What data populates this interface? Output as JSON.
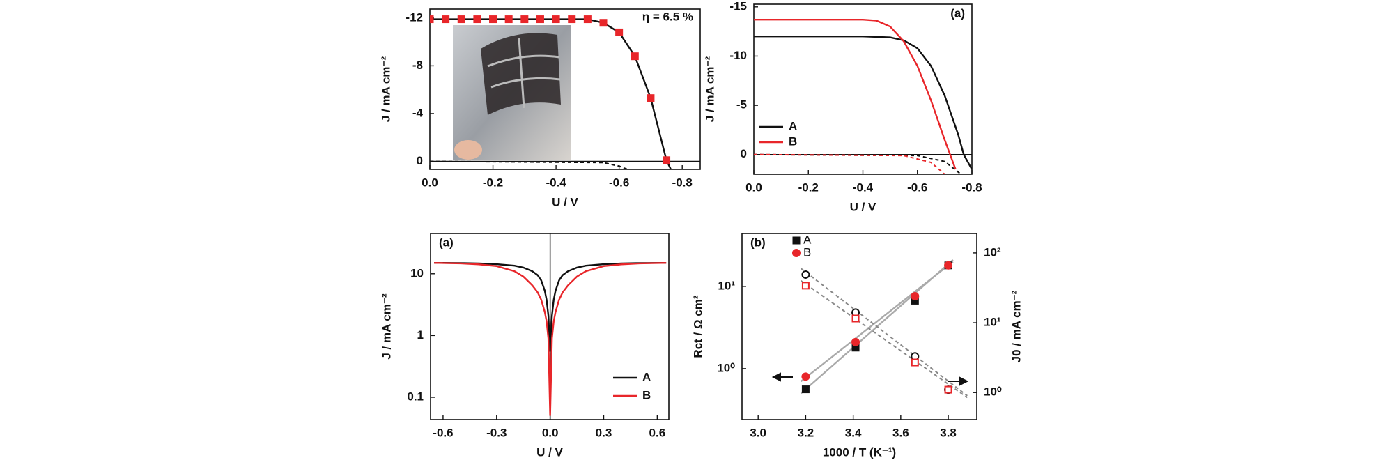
{
  "chart_data": [
    {
      "type": "line",
      "annotation": "η = 6.5 %",
      "x_label": "U / V",
      "y_label": "J / mA cm⁻²",
      "xlim": [
        0,
        -0.857
      ],
      "xticks": [
        {
          "value": 0,
          "label": "0.0"
        },
        -0.2,
        -0.4,
        -0.6,
        -0.8
      ],
      "ylim": [
        0.67,
        -12.75
      ],
      "yticks": [
        -12,
        -8,
        -4,
        0
      ],
      "zero_line": true,
      "series": [
        {
          "color": "#111111",
          "style": "line",
          "x": [
            0,
            -0.1,
            -0.2,
            -0.3,
            -0.4,
            -0.5,
            -0.55,
            -0.6,
            -0.65,
            -0.7,
            -0.75,
            -0.77
          ],
          "values": [
            -11.9,
            -11.9,
            -11.9,
            -11.9,
            -11.9,
            -11.9,
            -11.6,
            -10.8,
            -8.8,
            -5.3,
            -0.1,
            1.0
          ]
        },
        {
          "color": "#e8262a",
          "style": "marker",
          "marker": "square",
          "filled": true,
          "x": [
            0,
            -0.05,
            -0.1,
            -0.15,
            -0.2,
            -0.25,
            -0.3,
            -0.35,
            -0.4,
            -0.45,
            -0.5,
            -0.55,
            -0.6,
            -0.65,
            -0.7,
            -0.75
          ],
          "values": [
            -11.9,
            -11.9,
            -11.9,
            -11.9,
            -11.9,
            -11.9,
            -11.9,
            -11.9,
            -11.9,
            -11.9,
            -11.9,
            -11.6,
            -10.8,
            -8.8,
            -5.3,
            -0.1
          ]
        },
        {
          "color": "#111111",
          "style": "line",
          "dash": true,
          "x": [
            0,
            -0.55,
            -0.6,
            -0.63
          ],
          "values": [
            0,
            0.1,
            0.4,
            0.7
          ]
        }
      ]
    },
    {
      "type": "line",
      "annotation": "(a)",
      "x_label": "U / V",
      "y_label": "J / mA cm⁻²",
      "xlim": [
        0,
        -0.8
      ],
      "xticks": [
        {
          "value": 0,
          "label": "0.0"
        },
        -0.2,
        -0.4,
        -0.6,
        -0.8
      ],
      "ylim": [
        2.0,
        -15.27
      ],
      "yticks": [
        -15,
        -10,
        -5,
        0
      ],
      "zero_line": true,
      "legend": "left",
      "series": [
        {
          "name": "A",
          "color": "#111111",
          "style": "line",
          "x": [
            0,
            -0.1,
            -0.2,
            -0.3,
            -0.4,
            -0.5,
            -0.55,
            -0.6,
            -0.65,
            -0.7,
            -0.75,
            -0.77,
            -0.8
          ],
          "values": [
            -12,
            -12,
            -12,
            -12,
            -12,
            -11.9,
            -11.6,
            -10.8,
            -9,
            -6,
            -2,
            0,
            1.5
          ]
        },
        {
          "name": "B",
          "color": "#e8262a",
          "style": "line",
          "x": [
            0,
            -0.1,
            -0.2,
            -0.3,
            -0.4,
            -0.45,
            -0.5,
            -0.55,
            -0.6,
            -0.65,
            -0.7,
            -0.72,
            -0.74
          ],
          "values": [
            -13.7,
            -13.7,
            -13.7,
            -13.7,
            -13.7,
            -13.6,
            -13,
            -11.5,
            -9,
            -5.5,
            -1.5,
            0,
            1.5
          ]
        },
        {
          "color": "#111111",
          "style": "line",
          "dash": true,
          "x": [
            0,
            -0.6,
            -0.7,
            -0.76
          ],
          "values": [
            0,
            0.1,
            0.7,
            2
          ]
        },
        {
          "color": "#e8262a",
          "style": "line",
          "dash": true,
          "x": [
            0,
            -0.55,
            -0.65,
            -0.7
          ],
          "values": [
            0,
            0.1,
            0.8,
            2
          ]
        }
      ]
    },
    {
      "type": "line",
      "annotation": "(a)",
      "x_label": "U / V",
      "y_label": "J / mA cm⁻²",
      "xlim": [
        -0.67,
        0.665
      ],
      "xticks": [
        -0.6,
        -0.3,
        {
          "value": 0,
          "label": "0.0"
        },
        0.3,
        0.6
      ],
      "ylim": [
        0.0435,
        44.9
      ],
      "yscale": "log",
      "yticks": [
        0.1,
        1,
        10
      ],
      "zero_vline": true,
      "legend": "lower right",
      "series": [
        {
          "name": "A",
          "color": "#111111",
          "style": "line",
          "x": [
            -0.65,
            -0.5,
            -0.4,
            -0.3,
            -0.2,
            -0.15,
            -0.1,
            -0.07,
            -0.05,
            -0.03,
            -0.02,
            -0.01,
            0,
            0.01,
            0.02,
            0.03,
            0.05,
            0.07,
            0.1,
            0.15,
            0.2,
            0.3,
            0.4,
            0.5,
            0.65
          ],
          "values": [
            15,
            14.9,
            14.7,
            14.3,
            13.5,
            12.6,
            11,
            9.5,
            7.8,
            5.3,
            3.8,
            2.1,
            0.55,
            2.1,
            3.8,
            5.3,
            7.8,
            9.5,
            11,
            12.6,
            13.5,
            14.3,
            14.7,
            14.9,
            15
          ]
        },
        {
          "name": "B",
          "color": "#e8262a",
          "style": "line",
          "x": [
            -0.65,
            -0.5,
            -0.4,
            -0.3,
            -0.2,
            -0.15,
            -0.1,
            -0.07,
            -0.05,
            -0.03,
            -0.02,
            -0.01,
            0,
            0.01,
            0.02,
            0.03,
            0.05,
            0.07,
            0.1,
            0.15,
            0.2,
            0.3,
            0.4,
            0.5,
            0.65
          ],
          "values": [
            15,
            14.7,
            14.2,
            13.3,
            11,
            9,
            6.5,
            5,
            3.8,
            2.4,
            1.7,
            0.9,
            0.05,
            0.9,
            1.7,
            2.4,
            3.8,
            5,
            6.5,
            9,
            11,
            13.3,
            14.2,
            14.7,
            15
          ]
        }
      ]
    },
    {
      "type": "scatter",
      "annotation": "(b)",
      "x_label": "1000 / T (K⁻¹)",
      "y_label": "Rct / Ω cm²",
      "y2_label": "J0 / mA cm⁻²",
      "xlim": [
        2.932,
        3.92
      ],
      "xticks": [
        {
          "value": 3,
          "label": "3.0"
        },
        3.2,
        3.4,
        3.6,
        3.8
      ],
      "ylim": [
        0.24,
        44
      ],
      "yscale": "log",
      "yticks": [
        {
          "value": 1,
          "label": "10⁰"
        },
        {
          "value": 10,
          "label": "10¹"
        }
      ],
      "y2lim": [
        0.41,
        190
      ],
      "y2scale": "log",
      "y2ticks": [
        {
          "value": 1,
          "label": "10⁰"
        },
        {
          "value": 10,
          "label": "10¹"
        },
        {
          "value": 100,
          "label": "10²"
        }
      ],
      "legend": "upper left",
      "series": [
        {
          "color": "#aaaaaa",
          "style": "line",
          "x": [
            3.18,
            3.82
          ],
          "values": [
            0.5,
            21
          ]
        },
        {
          "color": "#aaaaaa",
          "style": "line",
          "x": [
            3.18,
            3.82
          ],
          "values": [
            0.7,
            20
          ]
        },
        {
          "color": "#888888",
          "style": "line",
          "dash": true,
          "axis": "y2",
          "x": [
            3.18,
            3.88
          ],
          "values": [
            60,
            0.9
          ]
        },
        {
          "color": "#888888",
          "style": "line",
          "dash": true,
          "axis": "y2",
          "x": [
            3.18,
            3.88
          ],
          "values": [
            40,
            0.85
          ]
        },
        {
          "name": "A",
          "color": "#111111",
          "style": "marker",
          "marker": "square",
          "filled": true,
          "x": [
            3.2,
            3.41,
            3.66,
            3.8
          ],
          "values": [
            0.56,
            1.8,
            6.7,
            18
          ]
        },
        {
          "name": "B",
          "color": "#e8262a",
          "style": "marker",
          "marker": "circle",
          "filled": true,
          "x": [
            3.2,
            3.41,
            3.66,
            3.8
          ],
          "values": [
            0.8,
            2.1,
            7.6,
            18
          ]
        },
        {
          "color": "#111111",
          "style": "marker",
          "marker": "circle",
          "filled": false,
          "axis": "y2",
          "x": [
            3.2,
            3.41,
            3.66,
            3.8
          ],
          "values": [
            49,
            14,
            3.3,
            1.1
          ]
        },
        {
          "color": "#e8262a",
          "style": "marker",
          "marker": "square",
          "filled": false,
          "axis": "y2",
          "x": [
            3.2,
            3.41,
            3.66,
            3.8
          ],
          "values": [
            34,
            11.5,
            2.7,
            1.1
          ]
        }
      ]
    }
  ]
}
